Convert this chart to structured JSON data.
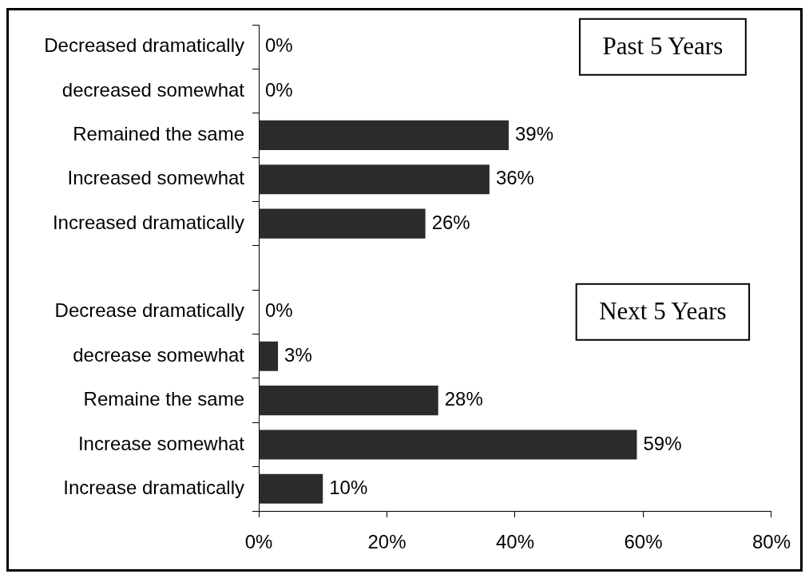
{
  "chart_data": {
    "type": "bar",
    "orientation": "horizontal",
    "categories": [
      "Decreased dramatically",
      "decreased somewhat",
      "Remained the same",
      "Increased somewhat",
      "Increased dramatically",
      null,
      "Decrease dramatically",
      "decrease somewhat",
      "Remaine the same",
      "Increase somewhat",
      "Increase dramatically"
    ],
    "values": [
      0,
      0,
      39,
      36,
      26,
      null,
      0,
      3,
      28,
      59,
      10
    ],
    "value_labels": [
      "0%",
      "0%",
      "39%",
      "36%",
      "26%",
      null,
      "0%",
      "3%",
      "28%",
      "59%",
      "10%"
    ],
    "color": "#2b2b2b",
    "xlim": [
      0,
      80
    ],
    "xticks": [
      {
        "value": 0,
        "label": "0%"
      },
      {
        "value": 20,
        "label": "20%"
      },
      {
        "value": 40,
        "label": "40%"
      },
      {
        "value": 60,
        "label": "60%"
      },
      {
        "value": 80,
        "label": "80%"
      }
    ],
    "annotations": [
      "Past 5 Years",
      "Next 5 Years"
    ],
    "grid": false,
    "legend": false
  }
}
